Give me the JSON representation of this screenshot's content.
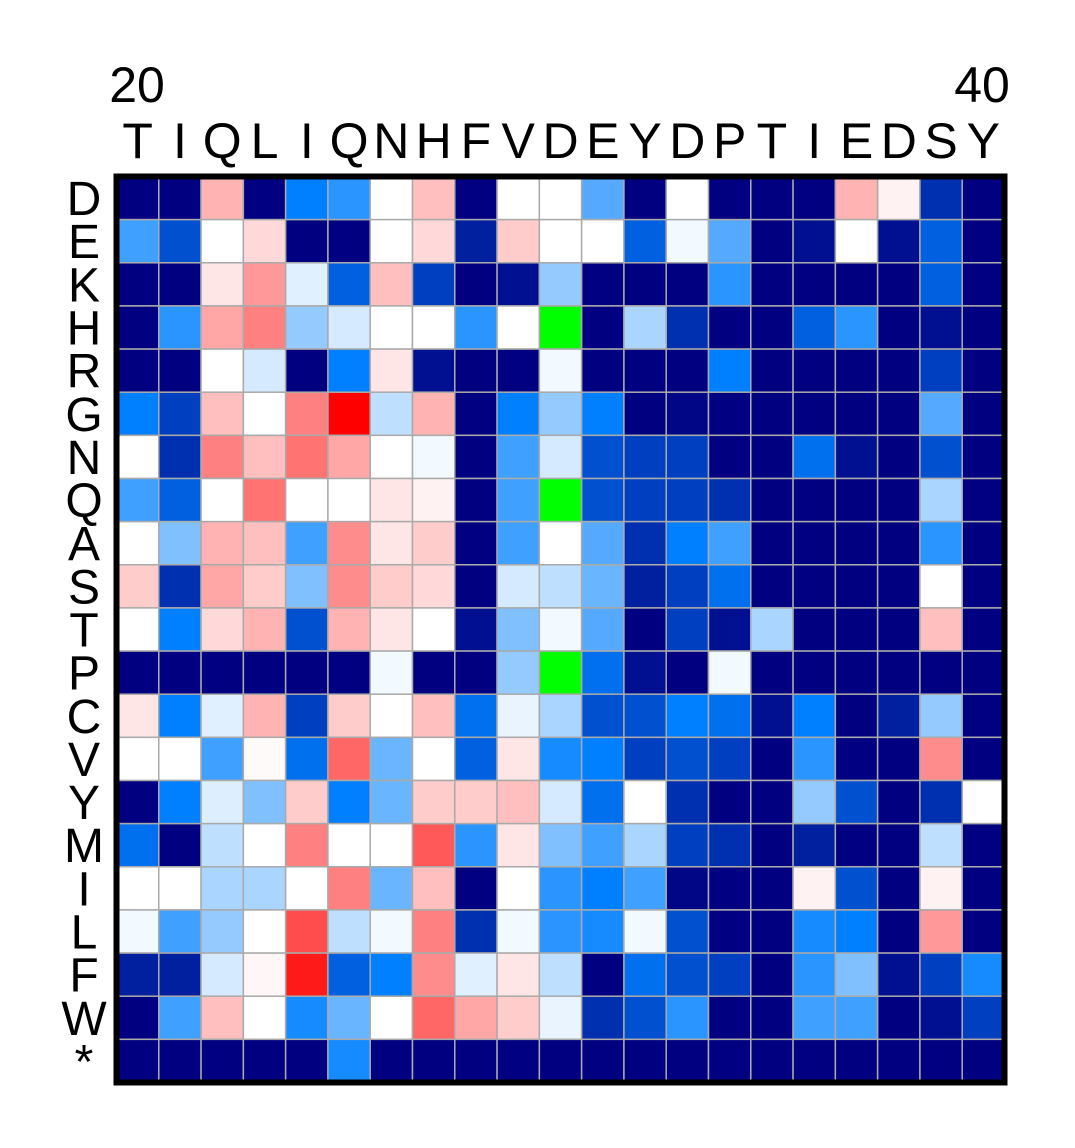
{
  "chart_data": {
    "type": "heatmap",
    "position_start": "20",
    "position_end": "40",
    "x_labels": [
      "T",
      "I",
      "Q",
      "L",
      "I",
      "Q",
      "N",
      "H",
      "F",
      "V",
      "D",
      "E",
      "Y",
      "D",
      "P",
      "T",
      "I",
      "E",
      "D",
      "S",
      "Y"
    ],
    "y_labels": [
      "D",
      "E",
      "K",
      "H",
      "R",
      "G",
      "N",
      "Q",
      "A",
      "S",
      "T",
      "P",
      "C",
      "V",
      "Y",
      "M",
      "I",
      "L",
      "F",
      "W",
      "*"
    ],
    "colors": {
      "grid_line": "#aaaaaa",
      "border": "#000000",
      "special_cell": "#00ff00"
    },
    "color_scale": "blue (low) - white (neutral) - red (high)",
    "special_value": "X",
    "values": [
      [
        -1,
        -1,
        0.3,
        -1,
        -0.6,
        -0.5,
        0,
        0.25,
        -1,
        0,
        0,
        -0.4,
        -1,
        0,
        -1,
        -1,
        -1,
        0.3,
        0.05,
        -0.85,
        -1
      ],
      [
        -0.45,
        -0.75,
        0,
        0.15,
        -1,
        -1,
        0,
        0.15,
        -0.9,
        0.2,
        0,
        0,
        -0.7,
        -0.03,
        -0.4,
        -1,
        -0.95,
        0,
        -0.95,
        -0.7,
        -1
      ],
      [
        -1,
        -1,
        0.1,
        0.4,
        -0.07,
        -0.7,
        0.25,
        -0.8,
        -1,
        -0.95,
        -0.25,
        -1,
        -1,
        -1,
        -0.5,
        -1,
        -1,
        -1,
        -1,
        -0.7,
        -1
      ],
      [
        -1,
        -0.5,
        0.35,
        0.5,
        -0.25,
        -0.1,
        0,
        0,
        -0.5,
        0,
        "X",
        -1,
        -0.2,
        -0.85,
        -1,
        -1,
        -0.7,
        -0.5,
        -1,
        -0.95,
        -1
      ],
      [
        -1,
        -1,
        0,
        -0.1,
        -1,
        -0.6,
        0.1,
        -0.95,
        -1,
        -1,
        -0.03,
        -1,
        -1,
        -1,
        -0.6,
        -1,
        -1,
        -1,
        -1,
        -0.8,
        -1
      ],
      [
        -0.6,
        -0.8,
        0.25,
        0,
        0.5,
        1.0,
        -0.15,
        0.3,
        -1,
        -0.6,
        -0.25,
        -0.6,
        -1,
        -0.98,
        -1,
        -1,
        -1,
        -1,
        -1,
        -0.4,
        -1
      ],
      [
        0,
        -0.85,
        0.5,
        0.25,
        0.55,
        0.35,
        0,
        -0.03,
        -1,
        -0.45,
        -0.1,
        -0.75,
        -0.8,
        -0.8,
        -1,
        -1,
        -0.65,
        -0.95,
        -1,
        -0.75,
        -1
      ],
      [
        -0.45,
        -0.7,
        0,
        0.55,
        0,
        0,
        0.1,
        0.05,
        -1,
        -0.45,
        "X",
        -0.75,
        -0.8,
        -0.8,
        -0.85,
        -1,
        -1,
        -1,
        -1,
        -0.2,
        -1
      ],
      [
        0,
        -0.3,
        0.3,
        0.25,
        -0.45,
        0.45,
        0.1,
        0.2,
        -1,
        -0.45,
        0,
        -0.4,
        -0.85,
        -0.6,
        -0.45,
        -1,
        -1,
        -1,
        -1,
        -0.5,
        -1
      ],
      [
        0.2,
        -0.85,
        0.35,
        0.2,
        -0.3,
        0.45,
        0.2,
        0.15,
        -1,
        -0.1,
        -0.15,
        -0.35,
        -0.9,
        -0.8,
        -0.65,
        -1,
        -1,
        -1,
        -1,
        0,
        -1
      ],
      [
        0,
        -0.6,
        0.15,
        0.3,
        -0.75,
        0.3,
        0.1,
        0,
        -0.95,
        -0.3,
        -0.03,
        -0.4,
        -1,
        -0.8,
        -0.95,
        -0.2,
        -1,
        -1,
        -1,
        0.25,
        -1
      ],
      [
        -1,
        -1,
        -1,
        -1,
        -1,
        -1,
        -0.03,
        -1,
        -1,
        -0.25,
        "X",
        -0.65,
        -0.95,
        -1,
        -0.03,
        -1,
        -1,
        -1,
        -1,
        -1,
        -1
      ],
      [
        0.1,
        -0.6,
        -0.07,
        0.3,
        -0.8,
        0.2,
        0,
        0.25,
        -0.65,
        -0.05,
        -0.2,
        -0.75,
        -0.75,
        -0.6,
        -0.65,
        -0.95,
        -0.6,
        -1,
        -0.9,
        -0.25,
        -1
      ],
      [
        0,
        0,
        -0.45,
        0.02,
        -0.65,
        0.6,
        -0.35,
        0,
        -0.7,
        0.1,
        -0.55,
        -0.6,
        -0.8,
        -0.75,
        -0.8,
        -1,
        -0.5,
        -1,
        -1,
        0.45,
        -1
      ],
      [
        -1,
        -0.6,
        -0.08,
        -0.3,
        0.2,
        -0.6,
        -0.35,
        0.2,
        0.2,
        0.25,
        -0.1,
        -0.65,
        0,
        -0.85,
        -1,
        -1,
        -0.25,
        -0.75,
        -1,
        -0.85,
        0
      ],
      [
        -0.65,
        -1,
        -0.15,
        0,
        0.5,
        0,
        0,
        0.65,
        -0.5,
        0.1,
        -0.3,
        -0.45,
        -0.2,
        -0.8,
        -0.85,
        -1,
        -0.9,
        -1,
        -1,
        -0.15,
        -1
      ],
      [
        0,
        0,
        -0.2,
        -0.2,
        0,
        0.5,
        -0.35,
        0.25,
        -1,
        0,
        -0.5,
        -0.6,
        -0.45,
        -0.98,
        -1,
        -1,
        0.05,
        -0.75,
        -1,
        0.05,
        -1
      ],
      [
        -0.03,
        -0.45,
        -0.25,
        0,
        0.7,
        -0.15,
        -0.03,
        0.5,
        -0.85,
        -0.03,
        -0.5,
        -0.55,
        -0.03,
        -0.75,
        -1,
        -1,
        -0.55,
        -0.6,
        -1,
        0.4,
        -1
      ],
      [
        -0.9,
        -0.9,
        -0.1,
        0.03,
        0.9,
        -0.7,
        -0.6,
        0.45,
        -0.07,
        0.1,
        -0.15,
        -1,
        -0.65,
        -0.75,
        -0.8,
        -1,
        -0.5,
        -0.3,
        -0.95,
        -0.8,
        -0.55
      ],
      [
        -1,
        -0.45,
        0.25,
        0,
        -0.55,
        -0.35,
        0,
        0.6,
        0.35,
        0.2,
        -0.05,
        -0.85,
        -0.75,
        -0.5,
        -1,
        -1,
        -0.45,
        -0.45,
        -1,
        -0.95,
        -0.8
      ],
      [
        -1,
        -1,
        -1,
        -1,
        -1,
        -0.55,
        -1,
        -1,
        -1,
        -1,
        -1,
        -1,
        -1,
        -1,
        -1,
        -1,
        -1,
        -1,
        -1,
        -1,
        -1
      ]
    ]
  }
}
